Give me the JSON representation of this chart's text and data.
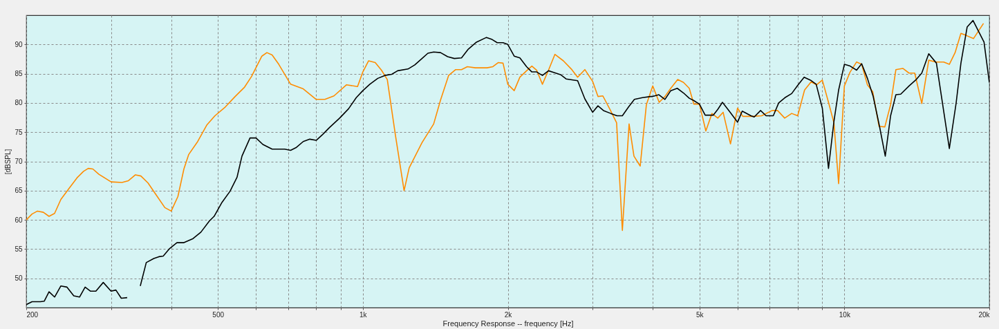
{
  "chart_data": {
    "type": "line",
    "xlabel": "Frequency Response -- frequency [Hz]",
    "ylabel": "[dBSPL]",
    "log": "x",
    "grid": true,
    "xlim": [
      200,
      20000
    ],
    "ylim": [
      45,
      95
    ],
    "xticks": [
      200,
      {
        "value": 300,
        "label": null
      },
      {
        "value": 400,
        "label": null
      },
      500,
      {
        "value": 600,
        "label": null
      },
      {
        "value": 700,
        "label": null
      },
      {
        "value": 800,
        "label": null
      },
      {
        "value": 900,
        "label": null
      },
      {
        "value": 1000,
        "label": "1k"
      },
      {
        "value": 2000,
        "label": "2k"
      },
      {
        "value": 3000,
        "label": null
      },
      {
        "value": 4000,
        "label": null
      },
      {
        "value": 5000,
        "label": "5k"
      },
      {
        "value": 6000,
        "label": null
      },
      {
        "value": 7000,
        "label": null
      },
      {
        "value": 8000,
        "label": null
      },
      {
        "value": 9000,
        "label": null
      },
      {
        "value": 10000,
        "label": "10k"
      },
      {
        "value": 20000,
        "label": "20k"
      }
    ],
    "yticks": [
      50,
      55,
      60,
      65,
      70,
      75,
      80,
      85,
      90
    ],
    "series": [
      {
        "color": "#ff8c00",
        "x": [
          200,
          205.6,
          211,
          217,
          223,
          229,
          236,
          245,
          255,
          263,
          269,
          275,
          283,
          300,
          316,
          326,
          337,
          346,
          358,
          372,
          388,
          400,
          413,
          425,
          435,
          454,
          474,
          493,
          518,
          543,
          568,
          587,
          617,
          632,
          648,
          669,
          688,
          708,
          752,
          800,
          834,
          871,
          925,
          975,
          1000,
          1028,
          1061,
          1093,
          1124,
          1168,
          1218,
          1248,
          1327,
          1403,
          1450,
          1507,
          1559,
          1603,
          1648,
          1713,
          1811,
          1862,
          1910,
          1955,
          2000,
          2062,
          2119,
          2188,
          2244,
          2296,
          2360,
          2430,
          2505,
          2609,
          2716,
          2793,
          2891,
          3000,
          3078,
          3151,
          3259,
          3365,
          3459,
          3572,
          3656,
          3767,
          3880,
          4000,
          4125,
          4240,
          4360,
          4507,
          4634,
          4763,
          4868,
          5000,
          5156,
          5309,
          5459,
          5600,
          5801,
          6000,
          6152,
          6423,
          6732,
          7078,
          7265,
          7517,
          7773,
          8000,
          8267,
          8529,
          8758,
          9000,
          9269,
          9512,
          9729,
          10000,
          10280,
          10603,
          10862,
          11166,
          11454,
          11803,
          12134,
          12474,
          12794,
          13225,
          13623,
          14000,
          14480,
          14970,
          15490,
          16080,
          16520,
          16980,
          17460,
          17950,
          18540,
          19450
        ],
        "values": [
          60.0,
          61.0,
          61.5,
          61.3,
          60.6,
          61.1,
          63.5,
          65.3,
          67.2,
          68.3,
          68.8,
          68.7,
          67.8,
          66.5,
          66.4,
          66.7,
          67.7,
          67.5,
          66.3,
          64.3,
          62.1,
          61.5,
          64.0,
          68.7,
          71.2,
          73.4,
          76.2,
          77.8,
          79.3,
          81.1,
          82.7,
          84.5,
          88.0,
          88.6,
          88.2,
          86.6,
          84.9,
          83.2,
          82.4,
          80.6,
          80.6,
          81.2,
          83.1,
          82.8,
          85.3,
          87.2,
          86.9,
          85.6,
          84.0,
          74.6,
          65.0,
          68.9,
          73.2,
          76.4,
          80.5,
          84.7,
          85.7,
          85.7,
          86.2,
          86.0,
          86.0,
          86.2,
          86.9,
          86.8,
          83.2,
          82.1,
          84.4,
          85.5,
          86.3,
          85.6,
          83.2,
          85.6,
          88.3,
          87.2,
          85.7,
          84.4,
          85.7,
          83.7,
          81.1,
          81.2,
          78.9,
          76.6,
          58.2,
          76.4,
          70.9,
          69.2,
          79.7,
          82.9,
          80.1,
          81.1,
          82.5,
          84.0,
          83.5,
          82.5,
          79.8,
          79.8,
          75.2,
          78.2,
          77.4,
          78.4,
          73.0,
          79.1,
          77.7,
          77.7,
          77.8,
          78.7,
          78.7,
          77.4,
          78.2,
          77.8,
          82.2,
          83.6,
          83.1,
          83.9,
          80.1,
          76.6,
          66.2,
          82.9,
          85.3,
          87.0,
          86.6,
          83.1,
          81.9,
          76.0,
          75.9,
          79.7,
          85.7,
          85.9,
          85.1,
          85.1,
          79.9,
          87.3,
          87.0,
          87.0,
          86.6,
          88.6,
          91.9,
          91.5,
          91.0,
          93.6
        ]
      },
      {
        "color": "#000000",
        "x": [
          200,
          205.6,
          214,
          218,
          223,
          229,
          236,
          243,
          251,
          258,
          265,
          272,
          279,
          289,
          300,
          307,
          315,
          324,
          330,
          333,
          337,
          345,
          355,
          368,
          377,
          385,
          397,
          411,
          425,
          444,
          461,
          480,
          491,
          510,
          530,
          548,
          561,
          583,
          600,
          620,
          648,
          688,
          708,
          728,
          752,
          776,
          800,
          825,
          853,
          895,
          934,
          969,
          1000,
          1034,
          1074,
          1111,
          1148,
          1181,
          1241,
          1282,
          1327,
          1365,
          1403,
          1450,
          1500,
          1549,
          1603,
          1656,
          1722,
          1806,
          1850,
          1901,
          1955,
          2000,
          2062,
          2119,
          2188,
          2244,
          2296,
          2360,
          2430,
          2496,
          2579,
          2643,
          2793,
          2891,
          3000,
          3078,
          3160,
          3272,
          3371,
          3459,
          3563,
          3664,
          3808,
          3959,
          4000,
          4120,
          4240,
          4360,
          4497,
          4634,
          4763,
          4868,
          5000,
          5140,
          5341,
          5459,
          5582,
          5767,
          6000,
          6136,
          6397,
          6498,
          6698,
          6878,
          7118,
          7305,
          7527,
          7773,
          8000,
          8250,
          8502,
          8739,
          9000,
          9269,
          9512,
          9729,
          10000,
          10280,
          10603,
          10862,
          11166,
          11478,
          11830,
          12160,
          12474,
          12794,
          13092,
          13623,
          14060,
          14480,
          14970,
          15530,
          16520,
          17060,
          17460,
          17990,
          18500,
          19500,
          20000
        ],
        "values": [
          45.5,
          46.0,
          46.0,
          46.1,
          47.7,
          46.8,
          48.7,
          48.5,
          47.0,
          46.8,
          48.5,
          47.8,
          47.8,
          49.3,
          47.8,
          48.0,
          46.6,
          46.7,
          null,
          null,
          null,
          48.7,
          52.7,
          53.4,
          53.7,
          53.8,
          55.1,
          56.1,
          56.1,
          56.8,
          57.9,
          59.8,
          60.6,
          63.0,
          64.9,
          67.3,
          70.9,
          74.0,
          74.0,
          72.9,
          72.1,
          72.1,
          71.9,
          72.4,
          73.4,
          73.8,
          73.6,
          74.6,
          75.8,
          77.4,
          79.0,
          80.9,
          82.1,
          83.2,
          84.2,
          84.7,
          84.9,
          85.5,
          85.8,
          86.5,
          87.6,
          88.5,
          88.7,
          88.6,
          87.9,
          87.6,
          87.7,
          89.2,
          90.4,
          91.2,
          90.9,
          90.3,
          90.3,
          90.0,
          88.0,
          87.7,
          86.2,
          85.3,
          85.3,
          84.7,
          85.5,
          85.2,
          84.8,
          84.1,
          83.8,
          80.7,
          78.4,
          79.5,
          78.7,
          78.2,
          77.8,
          77.8,
          79.3,
          80.6,
          80.9,
          81.1,
          81.1,
          81.4,
          80.6,
          82.1,
          82.5,
          81.7,
          80.8,
          80.4,
          79.8,
          77.9,
          77.9,
          78.9,
          80.1,
          78.6,
          76.7,
          78.6,
          77.8,
          77.6,
          78.7,
          77.8,
          77.8,
          80.0,
          80.9,
          81.6,
          83.0,
          84.4,
          83.9,
          83.2,
          79.1,
          68.8,
          76.8,
          82.2,
          86.6,
          86.3,
          85.6,
          86.7,
          84.2,
          81.1,
          76.0,
          70.9,
          77.8,
          81.4,
          81.5,
          82.9,
          83.9,
          85.1,
          88.4,
          86.8,
          72.2,
          79.9,
          86.8,
          93.0,
          94.1,
          90.4,
          83.5
        ]
      }
    ]
  }
}
